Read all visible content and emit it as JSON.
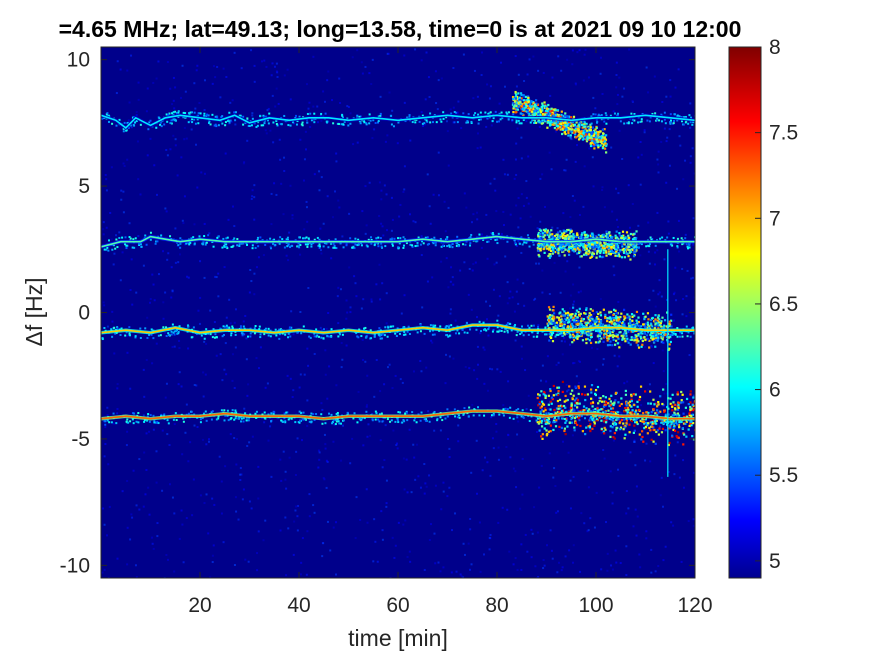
{
  "chart_data": {
    "type": "heatmap",
    "title": "=4.65 MHz;  lat=49.13; long=13.58, time=0 is at 2021 09 10 12:00",
    "xlabel": "time [min]",
    "ylabel": "Δf [Hz]",
    "xlim": [
      0,
      120
    ],
    "ylim": [
      -10.5,
      10.5
    ],
    "xticks": [
      20,
      40,
      60,
      80,
      100,
      120
    ],
    "xtick_labels": [
      "20",
      "40",
      "60",
      "80",
      "100",
      "120"
    ],
    "yticks": [
      10,
      5,
      0,
      -5,
      -10
    ],
    "ytick_labels": [
      "10",
      "5",
      "0",
      "-5",
      "-10"
    ],
    "colorbar": {
      "range": [
        4.9,
        8
      ],
      "ticks": [
        5,
        5.5,
        6,
        6.5,
        7,
        7.5,
        8
      ],
      "tick_labels": [
        "5",
        "5.5",
        "6",
        "6.5",
        "7",
        "7.5",
        "8"
      ],
      "colormap": "jet"
    },
    "background_level": 5.0,
    "traces": [
      {
        "name": "",
        "points": [
          [
            0,
            7.8
          ],
          [
            3,
            7.6
          ],
          [
            5,
            7.3
          ],
          [
            7,
            7.7
          ],
          [
            10,
            7.4
          ],
          [
            13,
            7.7
          ],
          [
            16,
            7.8
          ],
          [
            20,
            7.7
          ],
          [
            24,
            7.6
          ],
          [
            27,
            7.8
          ],
          [
            30,
            7.5
          ],
          [
            34,
            7.7
          ],
          [
            38,
            7.6
          ],
          [
            42,
            7.7
          ],
          [
            46,
            7.7
          ],
          [
            50,
            7.6
          ],
          [
            55,
            7.7
          ],
          [
            60,
            7.6
          ],
          [
            65,
            7.7
          ],
          [
            70,
            7.8
          ],
          [
            75,
            7.7
          ],
          [
            80,
            7.8
          ],
          [
            85,
            7.7
          ],
          [
            90,
            7.7
          ],
          [
            95,
            7.6
          ],
          [
            100,
            7.7
          ],
          [
            105,
            7.7
          ],
          [
            110,
            7.8
          ],
          [
            115,
            7.7
          ],
          [
            120,
            7.6
          ]
        ],
        "peak_level": 6.0
      },
      {
        "name": "",
        "points": [
          [
            0,
            2.6
          ],
          [
            4,
            2.8
          ],
          [
            8,
            2.8
          ],
          [
            10,
            3.0
          ],
          [
            13,
            2.9
          ],
          [
            16,
            2.8
          ],
          [
            20,
            2.9
          ],
          [
            25,
            2.8
          ],
          [
            30,
            2.8
          ],
          [
            35,
            2.8
          ],
          [
            40,
            2.8
          ],
          [
            45,
            2.8
          ],
          [
            50,
            2.8
          ],
          [
            55,
            2.8
          ],
          [
            60,
            2.8
          ],
          [
            65,
            2.9
          ],
          [
            70,
            2.8
          ],
          [
            75,
            2.9
          ],
          [
            80,
            3.0
          ],
          [
            85,
            2.9
          ],
          [
            90,
            2.8
          ],
          [
            95,
            2.8
          ],
          [
            100,
            2.9
          ],
          [
            105,
            2.8
          ],
          [
            110,
            2.8
          ],
          [
            115,
            2.8
          ],
          [
            120,
            2.8
          ]
        ],
        "peak_level": 6.3
      },
      {
        "name": "",
        "points": [
          [
            0,
            -0.8
          ],
          [
            5,
            -0.7
          ],
          [
            10,
            -0.8
          ],
          [
            15,
            -0.6
          ],
          [
            20,
            -0.8
          ],
          [
            25,
            -0.7
          ],
          [
            30,
            -0.7
          ],
          [
            35,
            -0.8
          ],
          [
            40,
            -0.7
          ],
          [
            45,
            -0.8
          ],
          [
            50,
            -0.7
          ],
          [
            55,
            -0.8
          ],
          [
            60,
            -0.7
          ],
          [
            65,
            -0.6
          ],
          [
            70,
            -0.7
          ],
          [
            75,
            -0.5
          ],
          [
            80,
            -0.5
          ],
          [
            85,
            -0.7
          ],
          [
            90,
            -0.7
          ],
          [
            95,
            -0.7
          ],
          [
            100,
            -0.6
          ],
          [
            105,
            -0.6
          ],
          [
            110,
            -0.7
          ],
          [
            115,
            -0.7
          ],
          [
            120,
            -0.7
          ]
        ],
        "peak_level": 7.0
      },
      {
        "name": "",
        "points": [
          [
            0,
            -4.2
          ],
          [
            5,
            -4.1
          ],
          [
            10,
            -4.2
          ],
          [
            15,
            -4.1
          ],
          [
            20,
            -4.1
          ],
          [
            25,
            -4.0
          ],
          [
            30,
            -4.1
          ],
          [
            35,
            -4.1
          ],
          [
            40,
            -4.1
          ],
          [
            45,
            -4.2
          ],
          [
            50,
            -4.1
          ],
          [
            55,
            -4.1
          ],
          [
            60,
            -4.1
          ],
          [
            65,
            -4.1
          ],
          [
            70,
            -4.0
          ],
          [
            75,
            -3.9
          ],
          [
            80,
            -3.9
          ],
          [
            85,
            -4.0
          ],
          [
            90,
            -4.1
          ],
          [
            95,
            -4.0
          ],
          [
            100,
            -4.0
          ],
          [
            105,
            -4.1
          ],
          [
            110,
            -4.1
          ],
          [
            115,
            -4.2
          ],
          [
            120,
            -4.2
          ]
        ],
        "peak_level": 7.3
      }
    ],
    "scatter_regions": [
      {
        "t_range": [
          83,
          102
        ],
        "f_center": [
          8.4,
          6.8
        ],
        "f_spread": 0.5,
        "peak_level": 7.5
      },
      {
        "t_range": [
          88,
          108
        ],
        "f_center": [
          2.8,
          2.7
        ],
        "f_spread": 0.6,
        "peak_level": 7.1
      },
      {
        "t_range": [
          90,
          115
        ],
        "f_center": [
          -0.4,
          -0.7
        ],
        "f_spread": 0.8,
        "peak_level": 7.3
      },
      {
        "t_range": [
          88,
          122
        ],
        "f_center": [
          -3.8,
          -4.1
        ],
        "f_spread": 1.2,
        "peak_level": 7.9
      }
    ],
    "vertical_streak": {
      "t": 114.5,
      "f_range": [
        -6.5,
        2.5
      ],
      "level": 6.0
    }
  }
}
